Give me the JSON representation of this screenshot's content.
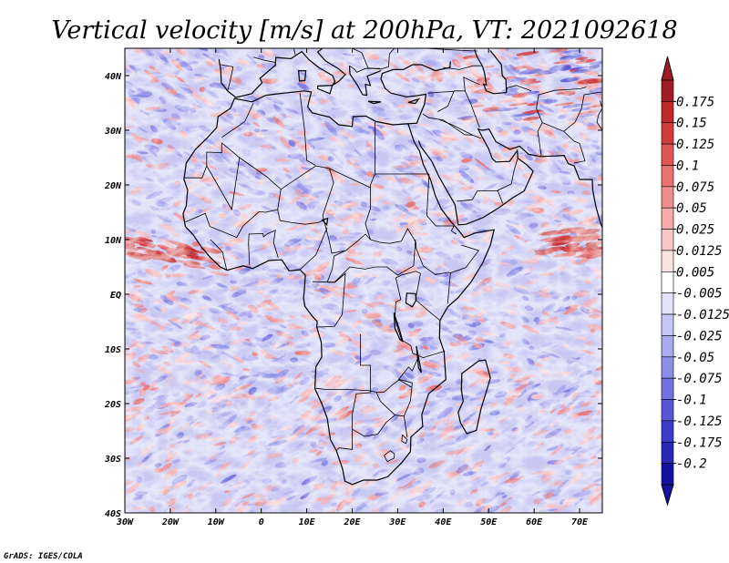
{
  "chart_data": {
    "type": "heatmap",
    "title": "Vertical velocity [m/s] at 200hPa, VT: 2021092618",
    "variable": "Vertical velocity",
    "units": "m/s",
    "level": "200hPa",
    "valid_time": "2021092618",
    "lon_range": [
      -30,
      75
    ],
    "lat_range": [
      -40,
      45
    ],
    "x_ticks": [
      {
        "value": -30,
        "label": "30W"
      },
      {
        "value": -20,
        "label": "20W"
      },
      {
        "value": -10,
        "label": "10W"
      },
      {
        "value": 0,
        "label": "0"
      },
      {
        "value": 10,
        "label": "10E"
      },
      {
        "value": 20,
        "label": "20E"
      },
      {
        "value": 30,
        "label": "30E"
      },
      {
        "value": 40,
        "label": "40E"
      },
      {
        "value": 50,
        "label": "50E"
      },
      {
        "value": 60,
        "label": "60E"
      },
      {
        "value": 70,
        "label": "70E"
      }
    ],
    "y_ticks": [
      {
        "value": 40,
        "label": "40N"
      },
      {
        "value": 30,
        "label": "30N"
      },
      {
        "value": 20,
        "label": "20N"
      },
      {
        "value": 10,
        "label": "10N"
      },
      {
        "value": 0,
        "label": "EQ"
      },
      {
        "value": -10,
        "label": "10S"
      },
      {
        "value": -20,
        "label": "20S"
      },
      {
        "value": -30,
        "label": "30S"
      },
      {
        "value": -40,
        "label": "40S"
      }
    ],
    "colorbar": {
      "labels": [
        "0.175",
        "0.15",
        "0.125",
        "0.1",
        "0.075",
        "0.05",
        "0.025",
        "0.0125",
        "0.005",
        "-0.005",
        "-0.0125",
        "-0.025",
        "-0.05",
        "-0.075",
        "-0.1",
        "-0.125",
        "-0.175",
        "-0.2"
      ],
      "colors": [
        "#a01c22",
        "#c02a2a",
        "#d23c3c",
        "#e05656",
        "#e87272",
        "#f08e8e",
        "#f6aaaa",
        "#fac6c6",
        "#fde2e2",
        "#ffffff",
        "#e2e2fc",
        "#c6c6f6",
        "#aaaaee",
        "#8e8ee8",
        "#7272e0",
        "#5656d6",
        "#3c3cca",
        "#2828b4",
        "#1414a0"
      ],
      "max_arrow_color": "#a01c22",
      "min_arrow_color": "#1414a0"
    },
    "features": [
      {
        "name": "west-african-ascent-band",
        "lon": [
          -30,
          -10
        ],
        "lat": [
          7,
          11
        ],
        "sign": "positive"
      },
      {
        "name": "arabian-sea-ascent",
        "lon": [
          62,
          75
        ],
        "lat": [
          7,
          12
        ],
        "sign": "positive"
      },
      {
        "name": "eastern-mediterranean-ascent",
        "lon": [
          45,
          75
        ],
        "lat": [
          32,
          45
        ],
        "sign": "mixed"
      }
    ]
  },
  "footer": {
    "credit": "GrADS: IGES/COLA"
  },
  "colors": {
    "positive": "#d23c3c",
    "negative": "#4a4ad8",
    "background": "#ffffff"
  }
}
